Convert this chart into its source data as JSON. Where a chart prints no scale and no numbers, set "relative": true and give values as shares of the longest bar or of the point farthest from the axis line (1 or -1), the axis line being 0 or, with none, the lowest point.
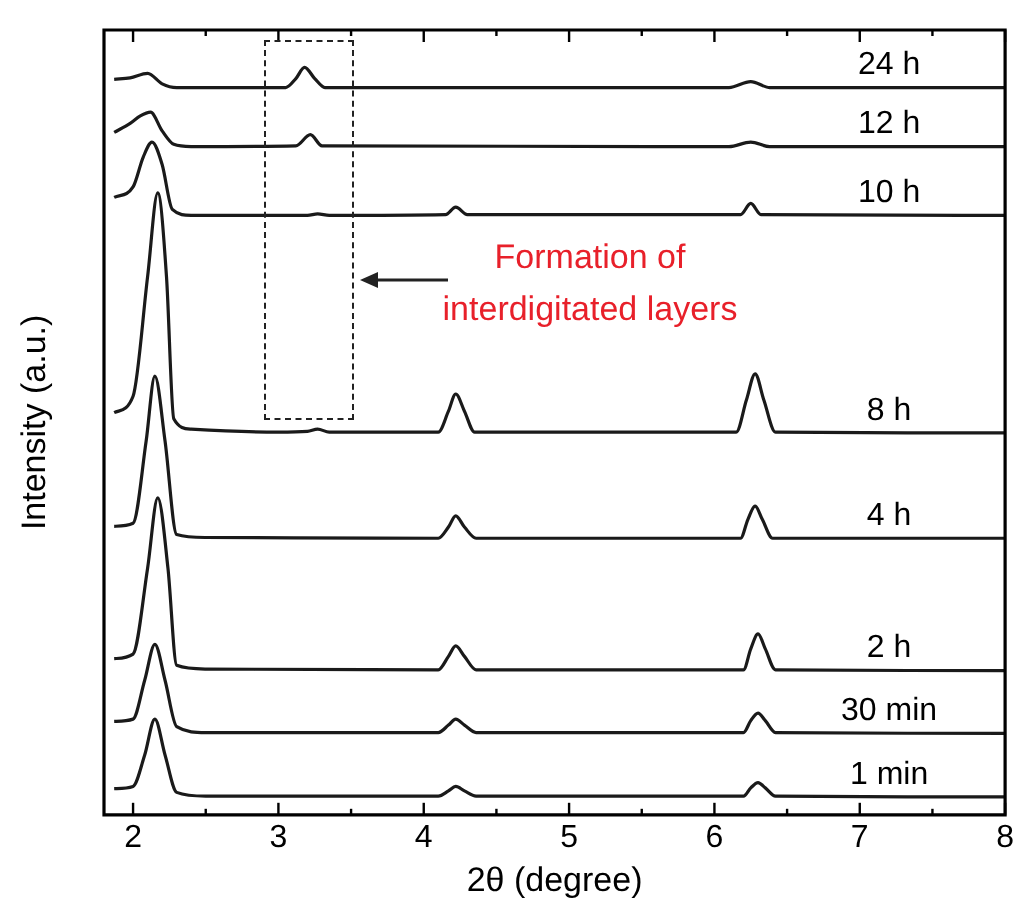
{
  "chart_data": {
    "type": "line",
    "relative": true,
    "xlabel": "2θ (degree)",
    "ylabel": "Intensity (a.u.)",
    "xlim": [
      1.8,
      8
    ],
    "xticks": [
      2,
      {
        "value": 2.5,
        "label": null
      },
      3,
      {
        "value": 3.5,
        "label": null
      },
      4,
      {
        "value": 4.5,
        "label": null
      },
      5,
      {
        "value": 5.5,
        "label": null
      },
      6,
      {
        "value": 6.5,
        "label": null
      },
      7,
      {
        "value": 7.5,
        "label": null
      },
      8
    ],
    "legend": false,
    "grid": false,
    "marker": "none",
    "line_style": "solid",
    "annotations": [
      "Formation of interdigitated layers"
    ],
    "series": [
      {
        "name": "1 min",
        "color": "#1a1a1a",
        "x": [
          1.87,
          2.0,
          2.08,
          2.15,
          2.22,
          2.3,
          2.5,
          4.1,
          4.17,
          4.22,
          4.28,
          4.36,
          6.2,
          6.25,
          6.3,
          6.35,
          6.42,
          8
        ],
        "values": [
          0.035,
          0.038,
          0.08,
          0.128,
          0.08,
          0.03,
          0.025,
          0.025,
          0.032,
          0.038,
          0.032,
          0.025,
          0.025,
          0.036,
          0.043,
          0.036,
          0.025,
          0.024
        ]
      },
      {
        "name": "30 min",
        "color": "#1a1a1a",
        "x": [
          1.87,
          2.0,
          2.08,
          2.15,
          2.22,
          2.3,
          2.5,
          4.1,
          4.17,
          4.22,
          4.28,
          4.36,
          6.2,
          6.25,
          6.3,
          6.35,
          6.42,
          8
        ],
        "values": [
          0.125,
          0.128,
          0.18,
          0.228,
          0.18,
          0.118,
          0.11,
          0.11,
          0.12,
          0.128,
          0.12,
          0.11,
          0.11,
          0.126,
          0.136,
          0.126,
          0.11,
          0.109
        ]
      },
      {
        "name": "2 h",
        "color": "#1a1a1a",
        "x": [
          1.87,
          2.0,
          2.1,
          2.17,
          2.24,
          2.3,
          2.5,
          4.1,
          4.17,
          4.22,
          4.28,
          4.36,
          6.2,
          6.25,
          6.3,
          6.35,
          6.42,
          8
        ],
        "values": [
          0.209,
          0.215,
          0.33,
          0.424,
          0.33,
          0.2,
          0.195,
          0.194,
          0.212,
          0.226,
          0.212,
          0.194,
          0.194,
          0.222,
          0.242,
          0.222,
          0.194,
          0.193
        ]
      },
      {
        "name": "4 h",
        "color": "#1a1a1a",
        "x": [
          1.87,
          2.0,
          2.09,
          2.15,
          2.22,
          2.3,
          2.5,
          4.1,
          4.17,
          4.22,
          4.28,
          4.36,
          6.18,
          6.23,
          6.28,
          6.33,
          6.4,
          8
        ],
        "values": [
          0.386,
          0.39,
          0.5,
          0.587,
          0.5,
          0.375,
          0.371,
          0.37,
          0.385,
          0.4,
          0.385,
          0.37,
          0.37,
          0.395,
          0.413,
          0.395,
          0.37,
          0.37
        ]
      },
      {
        "name": "8 h",
        "color": "#1a1a1a",
        "x": [
          1.87,
          2.0,
          2.1,
          2.17,
          2.23,
          2.28,
          2.4,
          3.0,
          3.2,
          3.27,
          3.35,
          4.1,
          4.17,
          4.22,
          4.28,
          4.35,
          6.15,
          6.22,
          6.28,
          6.34,
          6.42,
          8
        ],
        "values": [
          0.538,
          0.56,
          0.72,
          0.832,
          0.72,
          0.53,
          0.516,
          0.512,
          0.513,
          0.516,
          0.512,
          0.512,
          0.54,
          0.563,
          0.54,
          0.512,
          0.512,
          0.555,
          0.59,
          0.555,
          0.512,
          0.511
        ]
      },
      {
        "name": "10 h",
        "color": "#1a1a1a",
        "x": [
          1.87,
          2.0,
          2.07,
          2.13,
          2.2,
          2.27,
          2.4,
          3.2,
          3.27,
          3.35,
          4.15,
          4.22,
          4.3,
          6.18,
          6.25,
          6.32,
          8
        ],
        "values": [
          0.826,
          0.84,
          0.88,
          0.9,
          0.87,
          0.81,
          0.802,
          0.802,
          0.804,
          0.802,
          0.803,
          0.813,
          0.803,
          0.803,
          0.818,
          0.803,
          0.802
        ]
      },
      {
        "name": "12 h",
        "color": "#1a1a1a",
        "x": [
          1.87,
          1.98,
          2.05,
          2.12,
          2.2,
          2.28,
          2.4,
          3.12,
          3.22,
          3.3,
          6.1,
          6.25,
          6.38,
          8
        ],
        "values": [
          0.913,
          0.925,
          0.935,
          0.94,
          0.915,
          0.897,
          0.894,
          0.895,
          0.91,
          0.895,
          0.894,
          0.9,
          0.894,
          0.894
        ]
      },
      {
        "name": "24 h",
        "color": "#1a1a1a",
        "x": [
          1.87,
          1.98,
          2.1,
          2.2,
          2.3,
          3.05,
          3.12,
          3.18,
          3.25,
          3.32,
          6.1,
          6.25,
          6.38,
          8
        ],
        "values": [
          0.984,
          0.986,
          0.992,
          0.978,
          0.973,
          0.973,
          0.985,
          1.0,
          0.985,
          0.973,
          0.973,
          0.981,
          0.973,
          0.973
        ]
      }
    ]
  }
}
